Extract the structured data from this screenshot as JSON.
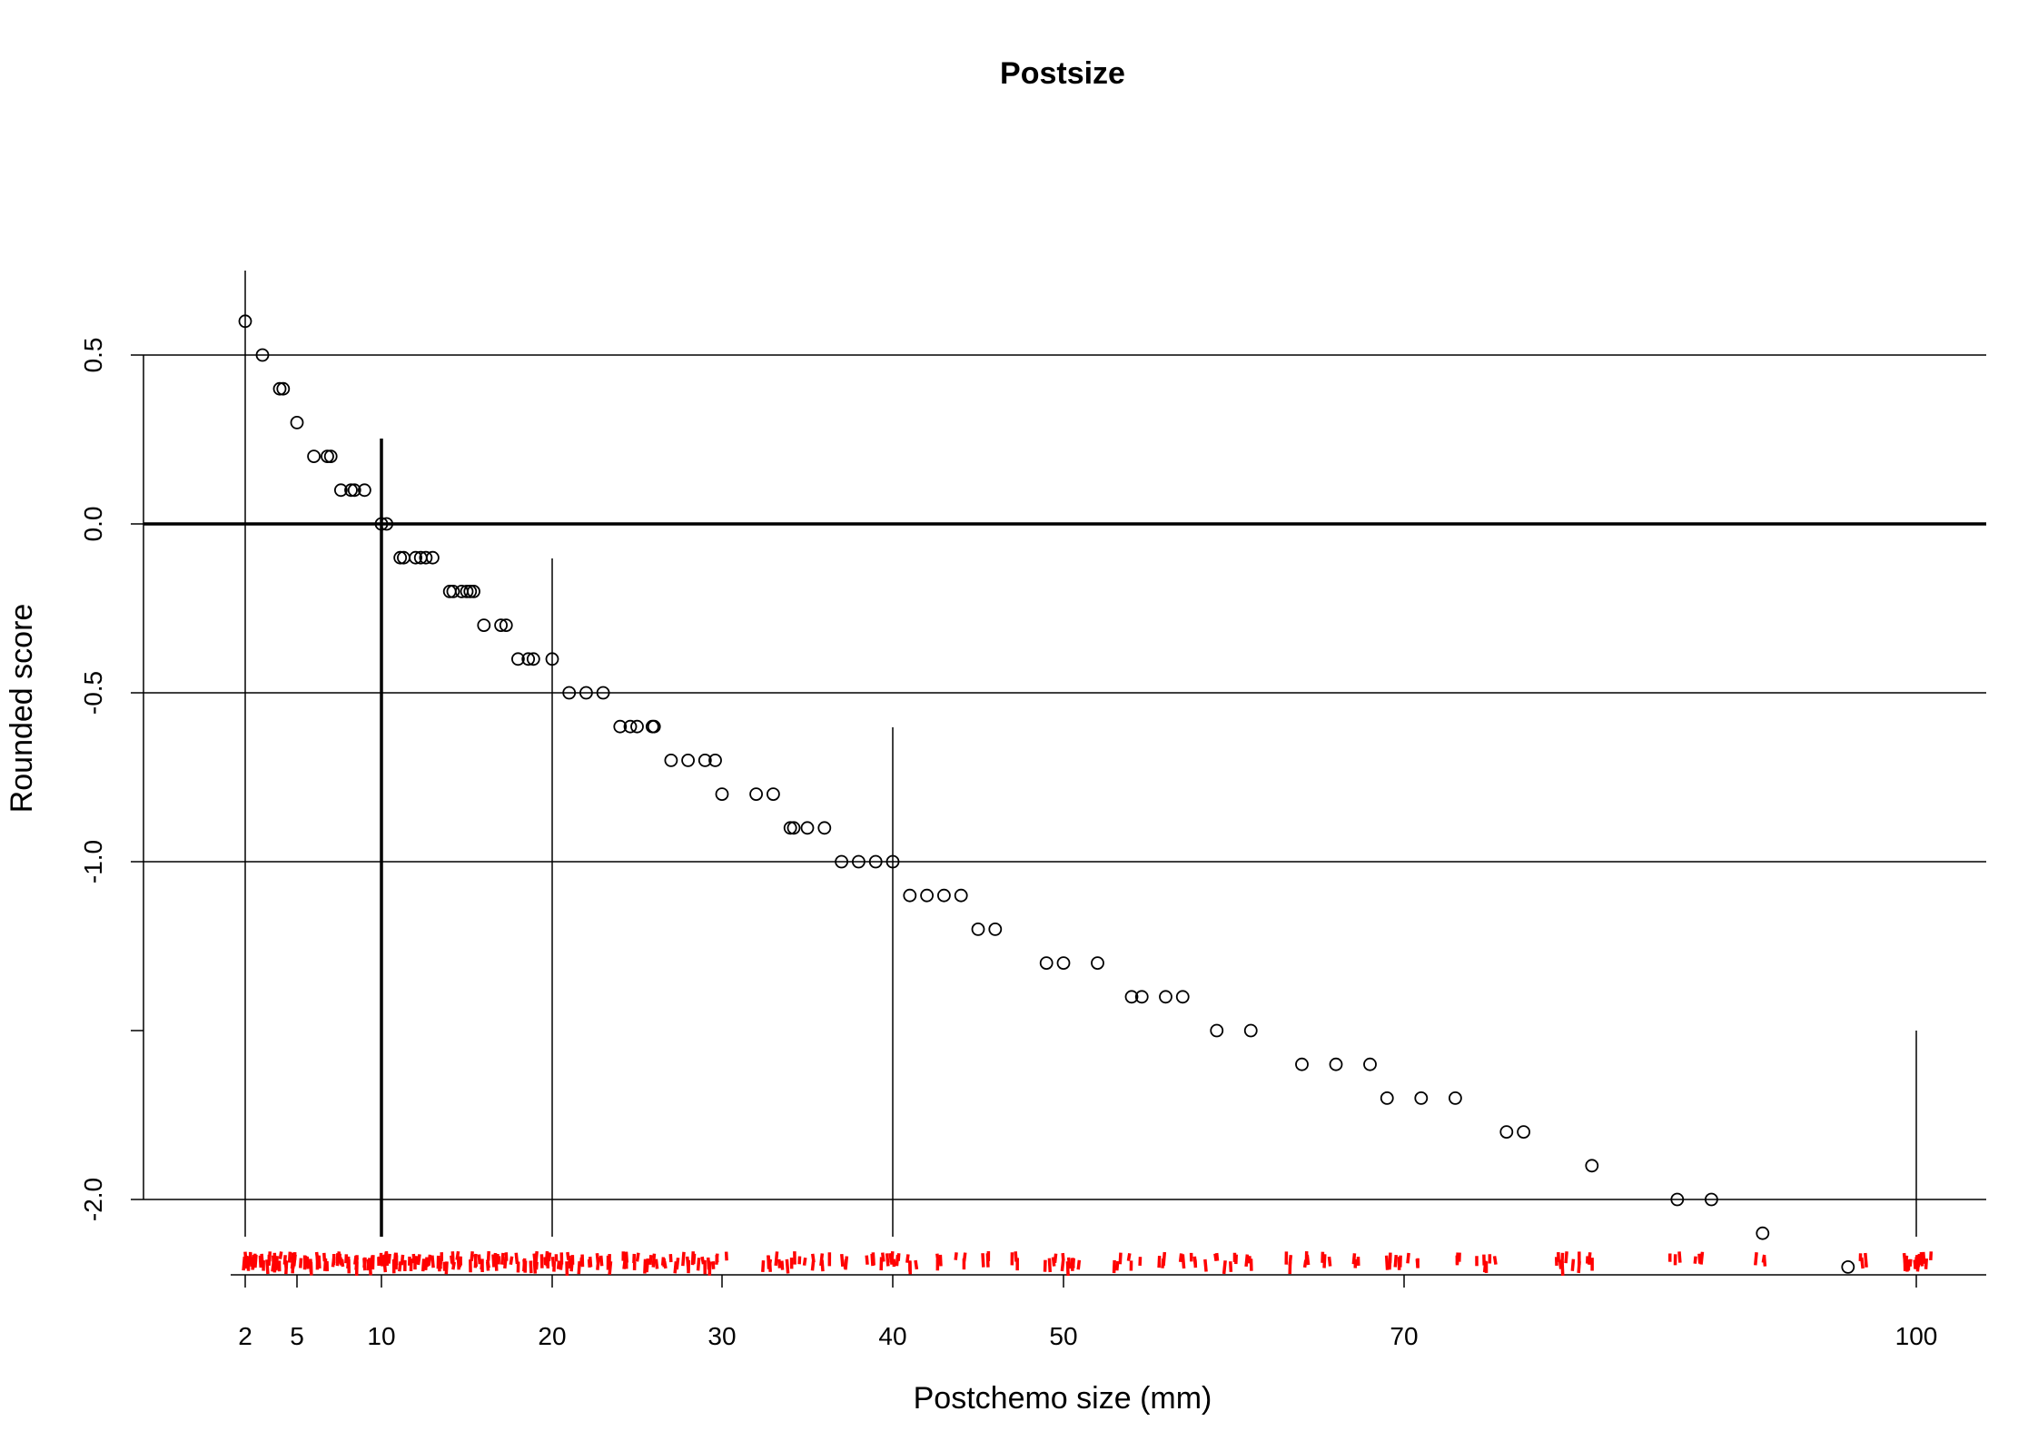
{
  "chart_data": {
    "type": "scatter",
    "title": "Postsize",
    "xlabel": "Postchemo size (mm)",
    "ylabel": "Rounded score",
    "x_ticks": [
      2,
      5,
      10,
      20,
      30,
      40,
      50,
      70,
      100
    ],
    "y_ticks": [
      0.5,
      0.0,
      -0.5,
      -1.0,
      -2.0
    ],
    "y_tick_labels": [
      "0.5",
      "0.0",
      "-0.5",
      "-1.0",
      "-2.0"
    ],
    "y_ticks_unlabeled": [
      -1.5
    ],
    "reference_lines": {
      "horizontal": [
        0.5,
        0.0,
        -0.5,
        -1.0,
        -2.0
      ],
      "vertical": [
        2,
        10,
        20,
        40,
        100
      ]
    },
    "rug_color": "#ff0000",
    "point_color": "#000000",
    "points": [
      {
        "x": 2,
        "y": 0.6
      },
      {
        "x": 3,
        "y": 0.5
      },
      {
        "x": 4,
        "y": 0.4
      },
      {
        "x": 4.2,
        "y": 0.4
      },
      {
        "x": 5,
        "y": 0.3
      },
      {
        "x": 6,
        "y": 0.2
      },
      {
        "x": 6.8,
        "y": 0.2
      },
      {
        "x": 7,
        "y": 0.2
      },
      {
        "x": 7.6,
        "y": 0.1
      },
      {
        "x": 8.2,
        "y": 0.1
      },
      {
        "x": 8.4,
        "y": 0.1
      },
      {
        "x": 9,
        "y": 0.1
      },
      {
        "x": 10,
        "y": 0.0
      },
      {
        "x": 10.3,
        "y": 0.0
      },
      {
        "x": 11.1,
        "y": -0.1
      },
      {
        "x": 11.3,
        "y": -0.1
      },
      {
        "x": 12,
        "y": -0.1
      },
      {
        "x": 12.3,
        "y": -0.1
      },
      {
        "x": 12.6,
        "y": -0.1
      },
      {
        "x": 13,
        "y": -0.1
      },
      {
        "x": 14,
        "y": -0.2
      },
      {
        "x": 14.2,
        "y": -0.2
      },
      {
        "x": 14.7,
        "y": -0.2
      },
      {
        "x": 15,
        "y": -0.2
      },
      {
        "x": 15.2,
        "y": -0.2
      },
      {
        "x": 15.4,
        "y": -0.2
      },
      {
        "x": 16,
        "y": -0.3
      },
      {
        "x": 17,
        "y": -0.3
      },
      {
        "x": 17.3,
        "y": -0.3
      },
      {
        "x": 18,
        "y": -0.4
      },
      {
        "x": 18.6,
        "y": -0.4
      },
      {
        "x": 18.9,
        "y": -0.4
      },
      {
        "x": 20,
        "y": -0.4
      },
      {
        "x": 21,
        "y": -0.5
      },
      {
        "x": 22,
        "y": -0.5
      },
      {
        "x": 23,
        "y": -0.5
      },
      {
        "x": 24,
        "y": -0.6
      },
      {
        "x": 24.6,
        "y": -0.6
      },
      {
        "x": 25,
        "y": -0.6
      },
      {
        "x": 25.9,
        "y": -0.6
      },
      {
        "x": 26,
        "y": -0.6
      },
      {
        "x": 27,
        "y": -0.7
      },
      {
        "x": 28,
        "y": -0.7
      },
      {
        "x": 29,
        "y": -0.7
      },
      {
        "x": 29.6,
        "y": -0.7
      },
      {
        "x": 30,
        "y": -0.8
      },
      {
        "x": 32,
        "y": -0.8
      },
      {
        "x": 33,
        "y": -0.8
      },
      {
        "x": 34,
        "y": -0.9
      },
      {
        "x": 34.2,
        "y": -0.9
      },
      {
        "x": 35,
        "y": -0.9
      },
      {
        "x": 36,
        "y": -0.9
      },
      {
        "x": 37,
        "y": -1.0
      },
      {
        "x": 38,
        "y": -1.0
      },
      {
        "x": 39,
        "y": -1.0
      },
      {
        "x": 40,
        "y": -1.0
      },
      {
        "x": 41,
        "y": -1.1
      },
      {
        "x": 42,
        "y": -1.1
      },
      {
        "x": 43,
        "y": -1.1
      },
      {
        "x": 44,
        "y": -1.1
      },
      {
        "x": 45,
        "y": -1.2
      },
      {
        "x": 46,
        "y": -1.2
      },
      {
        "x": 49,
        "y": -1.3
      },
      {
        "x": 50,
        "y": -1.3
      },
      {
        "x": 52,
        "y": -1.3
      },
      {
        "x": 54,
        "y": -1.4
      },
      {
        "x": 54.6,
        "y": -1.4
      },
      {
        "x": 56,
        "y": -1.4
      },
      {
        "x": 57,
        "y": -1.4
      },
      {
        "x": 59,
        "y": -1.5
      },
      {
        "x": 61,
        "y": -1.5
      },
      {
        "x": 64,
        "y": -1.6
      },
      {
        "x": 66,
        "y": -1.6
      },
      {
        "x": 68,
        "y": -1.6
      },
      {
        "x": 69,
        "y": -1.7
      },
      {
        "x": 71,
        "y": -1.7
      },
      {
        "x": 73,
        "y": -1.7
      },
      {
        "x": 76,
        "y": -1.8
      },
      {
        "x": 77,
        "y": -1.8
      },
      {
        "x": 81,
        "y": -1.9
      },
      {
        "x": 86,
        "y": -2.0
      },
      {
        "x": 88,
        "y": -2.0
      },
      {
        "x": 91,
        "y": -2.1
      },
      {
        "x": 96,
        "y": -2.2
      }
    ],
    "rug_x": [
      2,
      2.2,
      2.4,
      2.6,
      2.8,
      3.1,
      3.4,
      3.8,
      4.0,
      4.3,
      4.6,
      4.8,
      5.1,
      5.5,
      5.8,
      6.2,
      6.5,
      6.9,
      7.2,
      7.6,
      7.9,
      8.3,
      8.7,
      9.0,
      9.4,
      9.8,
      10.0,
      10.2,
      10.5,
      10.8,
      11.1,
      11.5,
      11.9,
      12.3,
      12.7,
      13.1,
      13.6,
      14.0,
      14.4,
      14.8,
      15.2,
      15.6,
      16.0,
      16.5,
      16.9,
      17.4,
      17.8,
      18.3,
      18.8,
      19.2,
      19.6,
      20.0,
      20.3,
      20.6,
      21.0,
      21.5,
      22.0,
      22.6,
      23.3,
      24.0,
      24.5,
      25.0,
      25.5,
      26.0,
      26.6,
      27.2,
      27.8,
      28.4,
      29.0,
      29.5,
      30.0,
      32.4,
      33.0,
      33.6,
      34.3,
      35.1,
      36.0,
      37.0,
      38.7,
      39.4,
      40.0,
      40.6,
      41.2,
      42.5,
      44.0,
      45.5,
      47.0,
      49.2,
      49.8,
      50.2,
      50.8,
      53.3,
      54.2,
      55.8,
      57.2,
      58.0,
      59.2,
      60.0,
      60.8,
      63.4,
      64.0,
      65.5,
      67.2,
      69.0,
      69.8,
      70.5,
      73.2,
      74.5,
      75.0,
      79.0,
      79.5,
      80.2,
      80.8,
      85.8,
      87.2,
      90.8,
      96.8,
      99.2,
      99.5,
      99.8,
      100.0,
      100.3,
      100.6
    ]
  }
}
